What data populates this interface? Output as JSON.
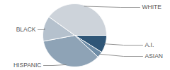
{
  "chart_data": {
    "type": "pie",
    "categories": [
      "A.I.",
      "ASIAN",
      "HISPANIC",
      "BLACK",
      "WHITE"
    ],
    "values": [
      9,
      3,
      35,
      13,
      40
    ],
    "colors": [
      "#2f5677",
      "#6d8ca6",
      "#8ea3b6",
      "#b5c1cd",
      "#cdd3da"
    ]
  }
}
